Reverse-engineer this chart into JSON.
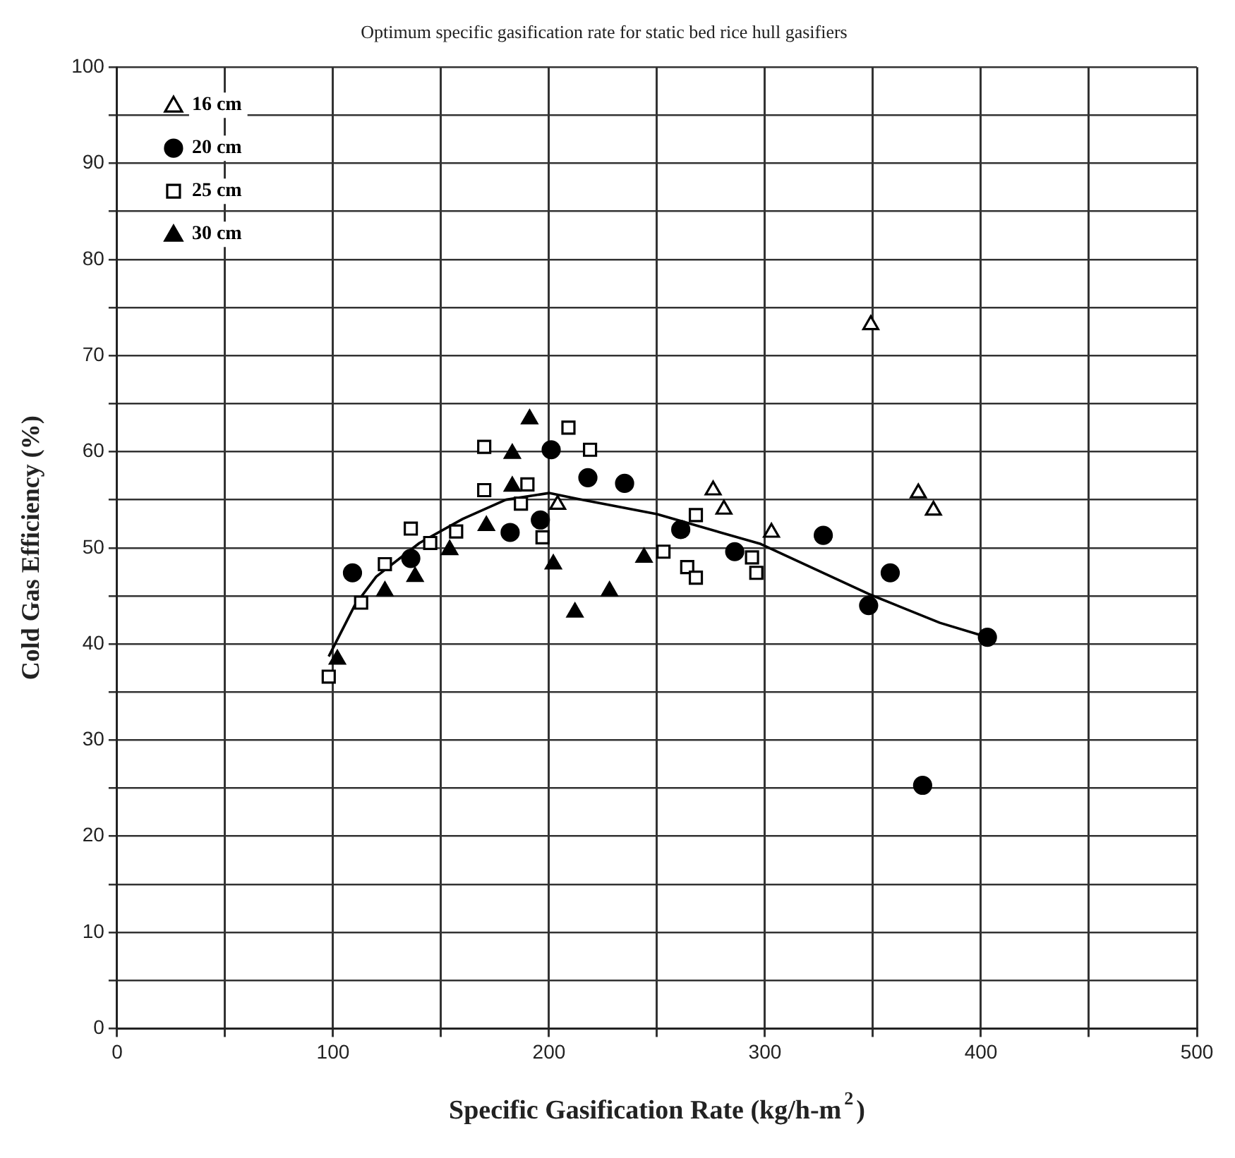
{
  "chart_data": {
    "type": "scatter",
    "title": "Optimum specific gasification rate for static bed rice hull gasifiers",
    "xlabel": "Specific Gasification Rate (kg/h-m$^{2}$)",
    "ylabel": "Cold Gas Efficiency (%)",
    "xlim": [
      0,
      500
    ],
    "xticks": [
      0,
      {
        "value": 50,
        "label": null
      },
      100,
      {
        "value": 150,
        "label": null
      },
      200,
      {
        "value": 250,
        "label": null
      },
      300,
      {
        "value": 350,
        "label": null
      },
      400,
      {
        "value": 450,
        "label": null
      },
      500
    ],
    "ylim": [
      0,
      100
    ],
    "yticks": [
      0,
      {
        "value": 5,
        "label": null
      },
      10,
      {
        "value": 15,
        "label": null
      },
      20,
      {
        "value": 25,
        "label": null
      },
      30,
      {
        "value": 35,
        "label": null
      },
      40,
      {
        "value": 45,
        "label": null
      },
      50,
      {
        "value": 55,
        "label": null
      },
      60,
      {
        "value": 65,
        "label": null
      },
      70,
      {
        "value": 75,
        "label": null
      },
      80,
      {
        "value": 85,
        "label": null
      },
      90,
      {
        "value": 95,
        "label": null
      },
      100
    ],
    "grid": true,
    "legend": "top left",
    "series": [
      {
        "name": "16 cm",
        "color": "#ffffff",
        "marker": "triangle",
        "x": [
          204,
          276,
          281,
          303,
          349,
          371,
          378
        ],
        "values": [
          54.5,
          56,
          54,
          51.6,
          73.2,
          55.7,
          53.9
        ]
      },
      {
        "name": "20 cm",
        "color": "#000000",
        "marker": "circle",
        "x": [
          109,
          136,
          182,
          196,
          201,
          218,
          235,
          261,
          286,
          327,
          348,
          358,
          373,
          403
        ],
        "values": [
          47.4,
          48.9,
          51.6,
          52.9,
          60.2,
          57.3,
          56.7,
          51.9,
          49.6,
          51.3,
          44,
          47.4,
          25.3,
          40.7
        ]
      },
      {
        "name": "25 cm",
        "color": "#ffffff",
        "marker": "square",
        "x": [
          98,
          113,
          124,
          136,
          145,
          157,
          170,
          170,
          187,
          190,
          197,
          209,
          219,
          253,
          264,
          268,
          268,
          294,
          296
        ],
        "values": [
          36.6,
          44.3,
          48.3,
          52,
          50.5,
          51.7,
          60.5,
          56,
          54.6,
          56.6,
          51.1,
          62.5,
          60.2,
          49.6,
          48,
          53.4,
          46.9,
          49,
          47.4
        ]
      },
      {
        "name": "30 cm",
        "color": "#000000",
        "marker": "triangle",
        "x": [
          102,
          124,
          138,
          154,
          171,
          183,
          183,
          191,
          202,
          212,
          228,
          244
        ],
        "values": [
          38.4,
          45.5,
          47,
          49.8,
          52.3,
          59.8,
          56.4,
          63.4,
          48.3,
          43.3,
          45.5,
          49
        ]
      },
      {
        "type": "line",
        "color": "#000000",
        "marker": "none",
        "line_style": "solid",
        "x": [
          98,
          110,
          120,
          140,
          160,
          180,
          200,
          213,
          250,
          298,
          348,
          381,
          403
        ],
        "values": [
          38.7,
          44,
          47,
          50.5,
          53,
          55,
          55.7,
          55.1,
          53.5,
          50.4,
          45.2,
          42.2,
          40.7
        ]
      }
    ]
  }
}
